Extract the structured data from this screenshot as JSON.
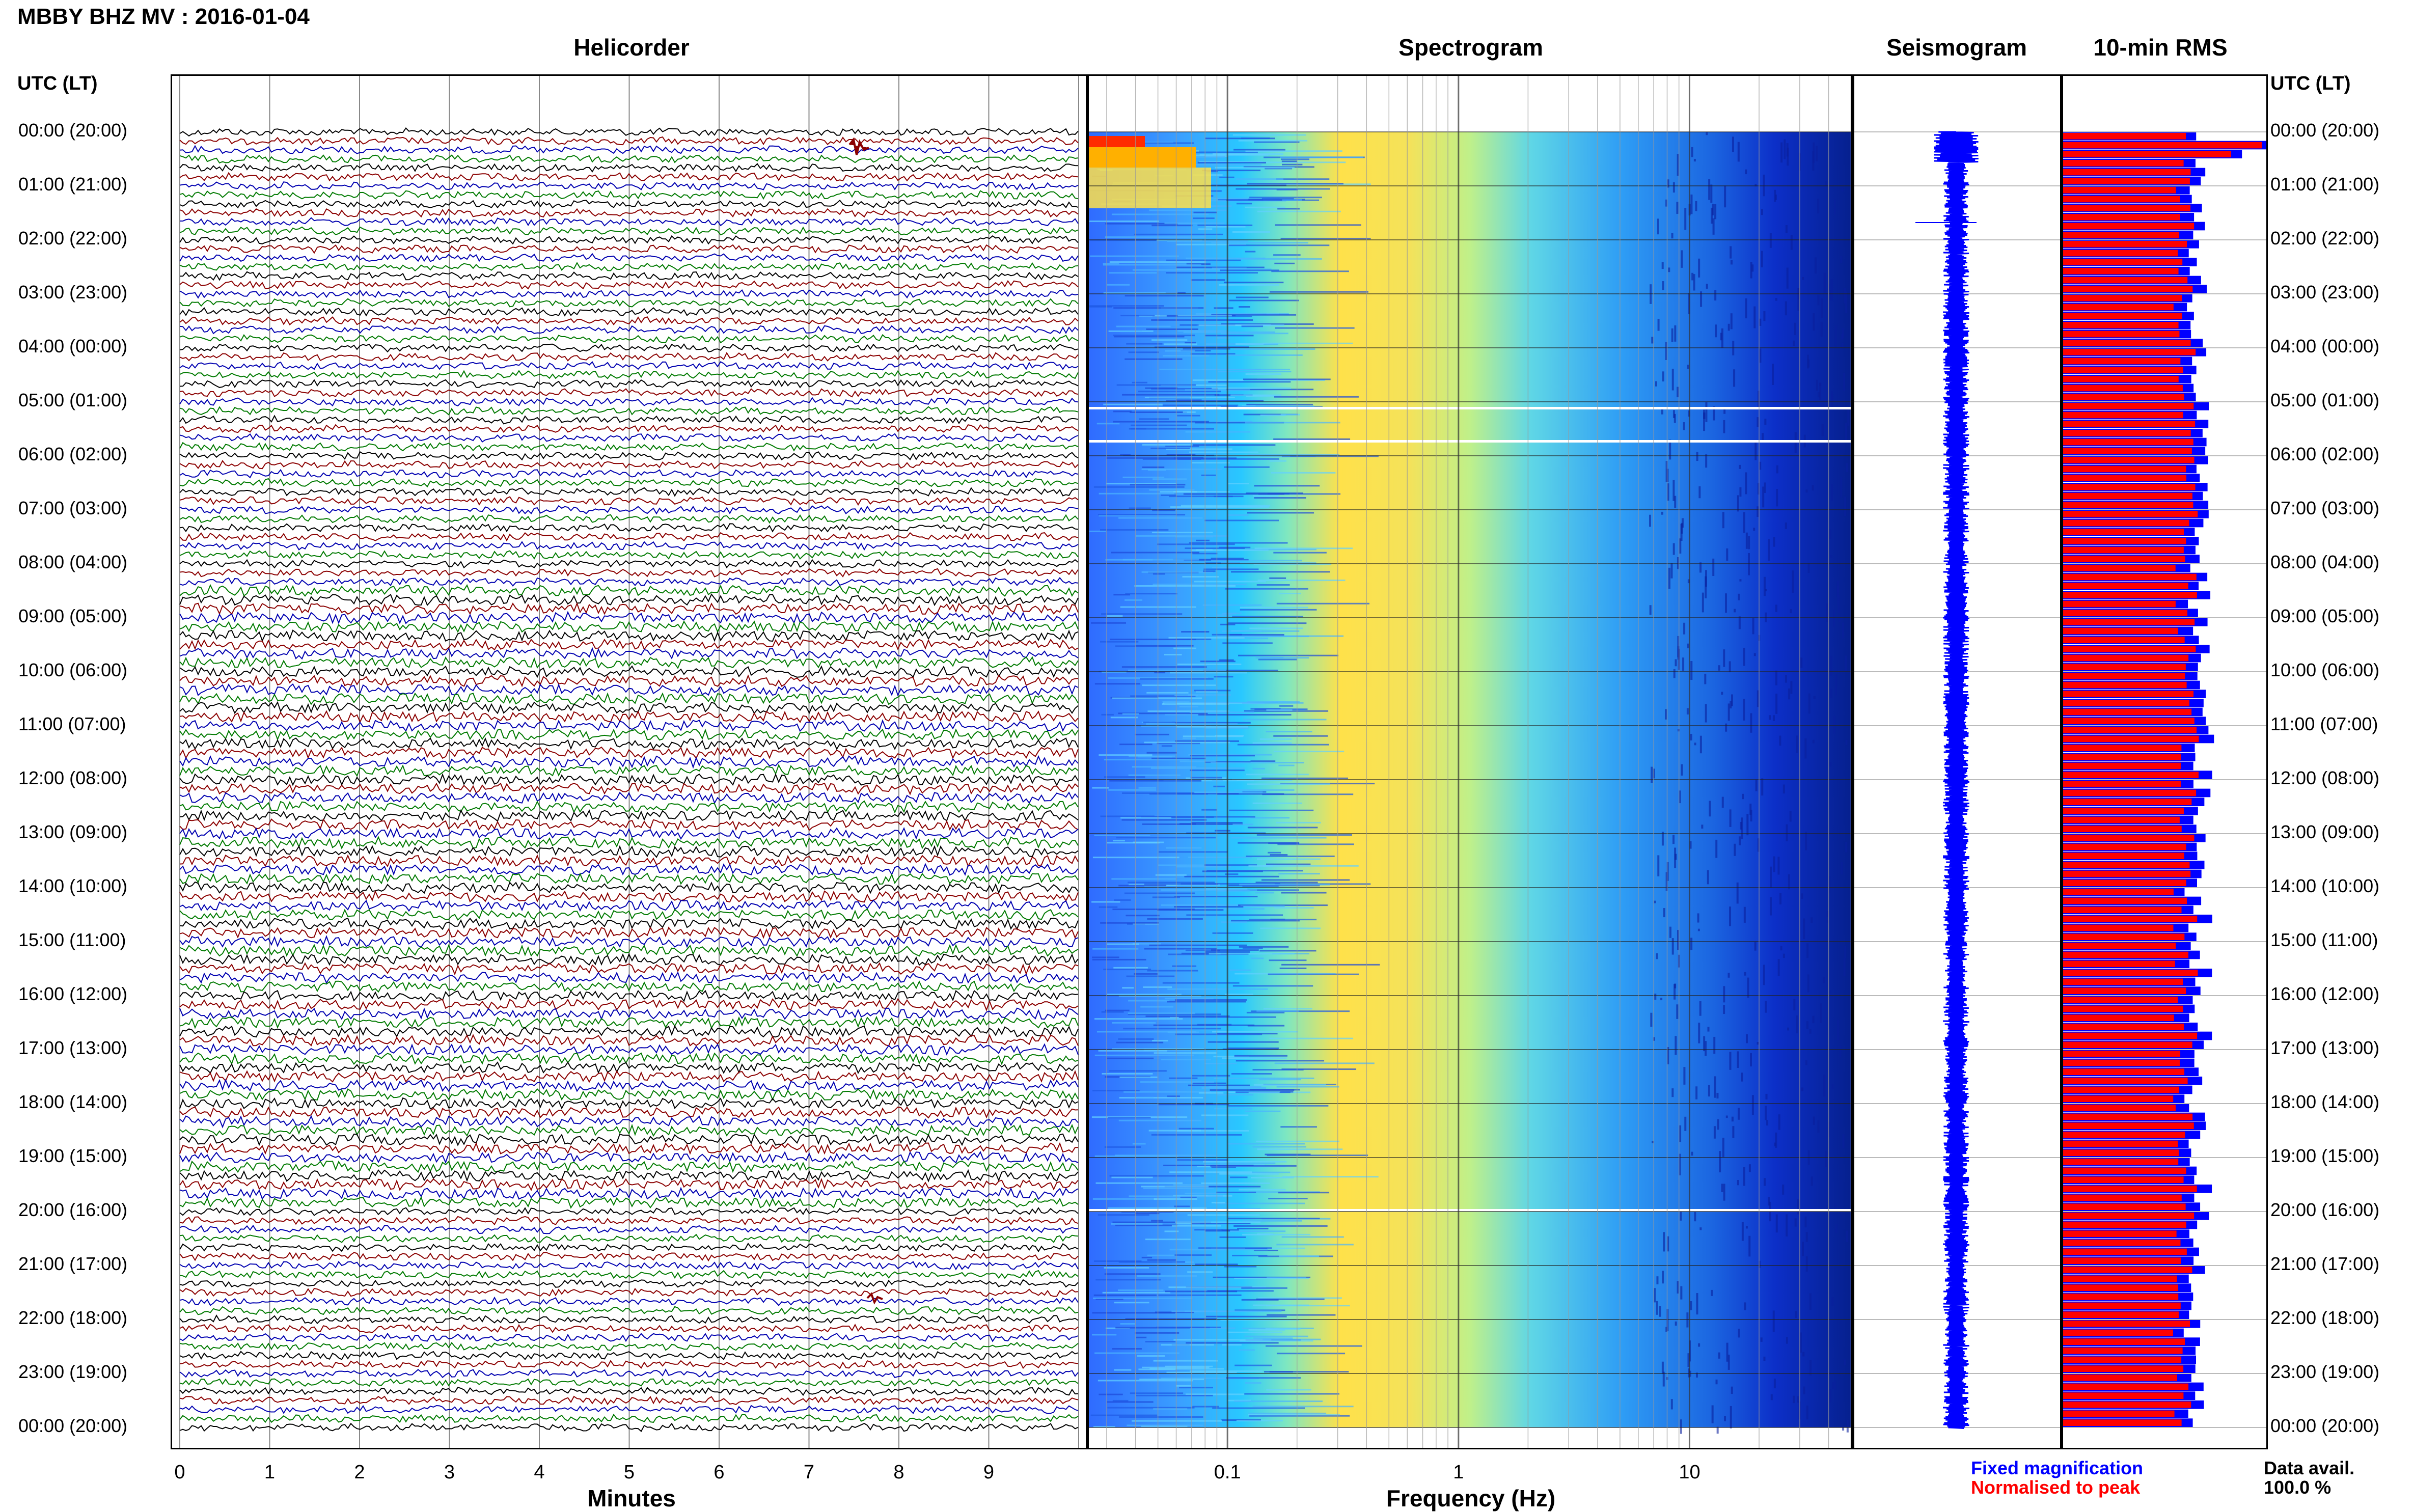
{
  "header": {
    "station_title": "MBBY BHZ MV : 2016-01-04"
  },
  "panels": {
    "helicorder": "Helicorder",
    "spectrogram": "Spectrogram",
    "seismogram": "Seismogram",
    "rms": "10-min RMS"
  },
  "axes": {
    "left_head": "UTC (LT)",
    "right_head": "UTC (LT)",
    "time_labels": [
      "00:00 (20:00)",
      "01:00 (21:00)",
      "02:00 (22:00)",
      "03:00 (23:00)",
      "04:00 (00:00)",
      "05:00 (01:00)",
      "06:00 (02:00)",
      "07:00 (03:00)",
      "08:00 (04:00)",
      "09:00 (05:00)",
      "10:00 (06:00)",
      "11:00 (07:00)",
      "12:00 (08:00)",
      "13:00 (09:00)",
      "14:00 (10:00)",
      "15:00 (11:00)",
      "16:00 (12:00)",
      "17:00 (13:00)",
      "18:00 (14:00)",
      "19:00 (15:00)",
      "20:00 (16:00)",
      "21:00 (17:00)",
      "22:00 (18:00)",
      "23:00 (19:00)",
      "00:00 (20:00)"
    ],
    "minutes_ticks": [
      "0",
      "1",
      "2",
      "3",
      "4",
      "5",
      "6",
      "7",
      "8",
      "9"
    ],
    "minutes_label": "Minutes",
    "freq_ticks": [
      "0.1",
      "1",
      "10"
    ],
    "freq_label": "Frequency (Hz)"
  },
  "legend": {
    "fixed": "Fixed magnification",
    "fixed_color": "#0000ff",
    "normalised": "Normalised to peak",
    "normalised_color": "#ff0000",
    "avail_label": "Data avail.",
    "avail_value": "100.0 %"
  },
  "colors": {
    "trace_cycle": [
      "#000000",
      "#8b0000",
      "#0000b0",
      "#007a00"
    ],
    "rms_red": "#ff0000",
    "rms_blue": "#0000ff",
    "seismo_blue": "#0000ff"
  }
}
